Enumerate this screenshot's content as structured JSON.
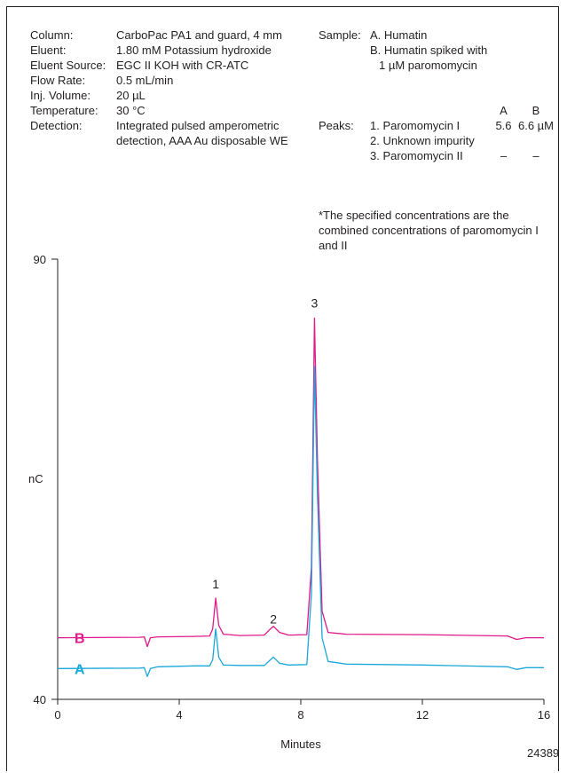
{
  "conditions": [
    {
      "key": "Column:",
      "value": "CarboPac PA1 and guard, 4 mm"
    },
    {
      "key": "Eluent:",
      "value": "1.80 mM Potassium hydroxide"
    },
    {
      "key": "Eluent Source:",
      "value": "EGC II KOH with CR-ATC"
    },
    {
      "key": "Flow Rate:",
      "value": "0.5 mL/min"
    },
    {
      "key": "Inj. Volume:",
      "value": "20 µL"
    },
    {
      "key": "Temperature:",
      "value": "30 °C"
    },
    {
      "key": "Detection:",
      "value": "Integrated pulsed amperometric detection, AAA Au  disposable WE"
    }
  ],
  "sample": {
    "label": "Sample:",
    "a": "A. Humatin",
    "b": "B. Humatin spiked with",
    "b2": "1 µM paromomycin"
  },
  "peaks": {
    "label": "Peaks:",
    "col_a": "A",
    "col_b": "B",
    "rows": [
      {
        "name": "1. Paromomycin I",
        "a": "5.6",
        "b": "6.6 µM"
      },
      {
        "name": "2. Unknown impurity",
        "a": "",
        "b": ""
      },
      {
        "name": "3. Paromomycin II",
        "a": "–",
        "b": "–"
      }
    ]
  },
  "footnote": "*The specified concentrations are the combined concentrations of paromomycin I and II",
  "figure_id": "24389",
  "colors": {
    "series_a": "#1aa7d9",
    "series_b": "#e0188a",
    "axis": "#231f20"
  },
  "chart_data": {
    "type": "line",
    "xlabel": "Minutes",
    "ylabel": "nC",
    "xlim": [
      0,
      16
    ],
    "ylim": [
      40,
      90
    ],
    "x_ticks": [
      "0",
      "4",
      "8",
      "12",
      "16"
    ],
    "y_ticks": [
      "40",
      "90"
    ],
    "grid": false,
    "peak_labels": [
      {
        "label": "1",
        "x": 5.2,
        "y": 52.6
      },
      {
        "label": "2",
        "x": 7.1,
        "y": 48.6
      },
      {
        "label": "3",
        "x": 8.45,
        "y": 84.5
      }
    ],
    "series": [
      {
        "name": "B",
        "color": "#e0188a",
        "points": [
          [
            0,
            47.0
          ],
          [
            2.7,
            47.05
          ],
          [
            2.85,
            47.1
          ],
          [
            2.95,
            46.0
          ],
          [
            3.05,
            47.0
          ],
          [
            3.3,
            47.1
          ],
          [
            4.5,
            47.15
          ],
          [
            5.0,
            47.2
          ],
          [
            5.1,
            48.0
          ],
          [
            5.2,
            51.5
          ],
          [
            5.3,
            48.4
          ],
          [
            5.45,
            47.4
          ],
          [
            6.0,
            47.25
          ],
          [
            6.8,
            47.3
          ],
          [
            7.0,
            48.0
          ],
          [
            7.1,
            48.3
          ],
          [
            7.3,
            47.6
          ],
          [
            7.6,
            47.3
          ],
          [
            8.2,
            47.35
          ],
          [
            8.35,
            55.0
          ],
          [
            8.45,
            83.3
          ],
          [
            8.55,
            67.0
          ],
          [
            8.7,
            50.0
          ],
          [
            8.9,
            47.6
          ],
          [
            9.5,
            47.4
          ],
          [
            12.0,
            47.35
          ],
          [
            14.8,
            47.2
          ],
          [
            15.1,
            46.8
          ],
          [
            15.4,
            47.0
          ],
          [
            16.0,
            47.0
          ]
        ]
      },
      {
        "name": "A",
        "color": "#1aa7d9",
        "points": [
          [
            0,
            43.5
          ],
          [
            2.7,
            43.55
          ],
          [
            2.85,
            43.6
          ],
          [
            2.95,
            42.6
          ],
          [
            3.05,
            43.5
          ],
          [
            3.3,
            43.7
          ],
          [
            4.5,
            43.8
          ],
          [
            5.0,
            43.8
          ],
          [
            5.1,
            44.5
          ],
          [
            5.2,
            48.0
          ],
          [
            5.3,
            44.8
          ],
          [
            5.45,
            43.9
          ],
          [
            6.0,
            43.85
          ],
          [
            6.8,
            43.85
          ],
          [
            7.0,
            44.5
          ],
          [
            7.1,
            44.8
          ],
          [
            7.3,
            44.1
          ],
          [
            7.6,
            43.9
          ],
          [
            8.2,
            43.95
          ],
          [
            8.35,
            52.0
          ],
          [
            8.45,
            77.8
          ],
          [
            8.55,
            63.0
          ],
          [
            8.7,
            47.0
          ],
          [
            8.9,
            44.3
          ],
          [
            9.5,
            44.0
          ],
          [
            12.0,
            43.9
          ],
          [
            14.8,
            43.7
          ],
          [
            15.1,
            43.4
          ],
          [
            15.4,
            43.6
          ],
          [
            16.0,
            43.6
          ]
        ]
      }
    ]
  }
}
